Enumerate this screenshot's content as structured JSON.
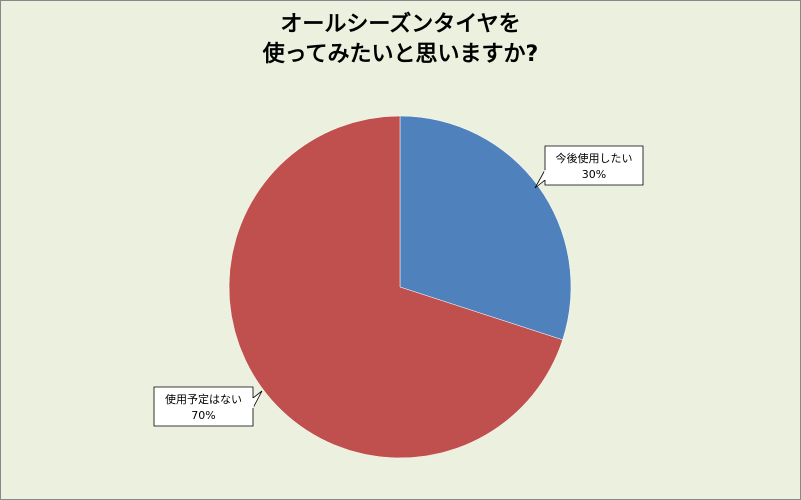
{
  "chart_data": {
    "type": "pie",
    "title_lines": [
      "オールシーズンタイヤを",
      "使ってみたいと思いますか?"
    ],
    "slices": [
      {
        "label": "今後使用したい",
        "value": 30,
        "value_label": "30%",
        "color": "#4f81bd"
      },
      {
        "label": "使用予定はない",
        "value": 70,
        "value_label": "70%",
        "color": "#c0504d"
      }
    ],
    "background": "#ebf1de",
    "legend": "none"
  }
}
